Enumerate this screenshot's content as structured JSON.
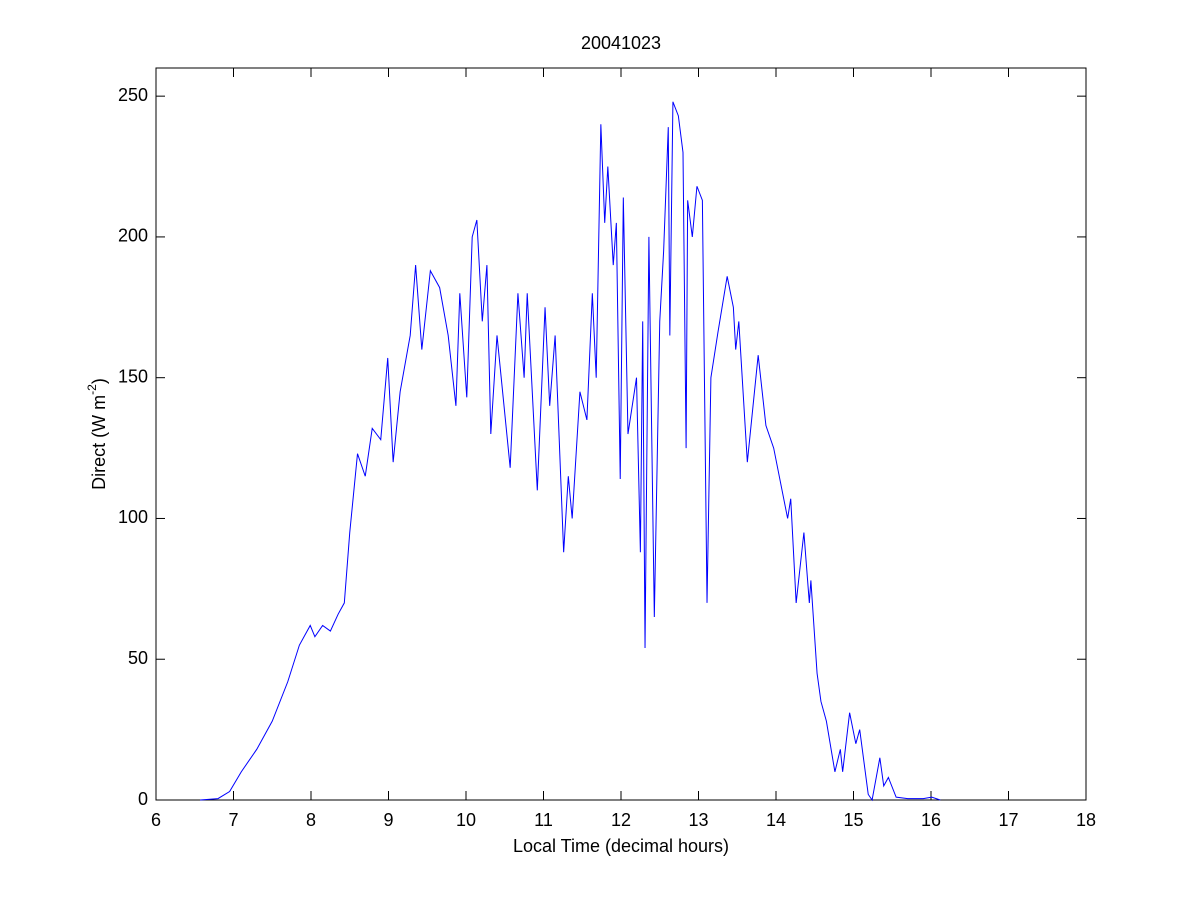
{
  "chart_data": {
    "type": "line",
    "title": "20041023",
    "xlabel": "Local Time (decimal hours)",
    "ylabel": {
      "text": "Direct (W m",
      "sup": "-2",
      "end": ")"
    },
    "xlim": [
      6,
      18
    ],
    "xticks": [
      6,
      7,
      8,
      9,
      10,
      11,
      12,
      13,
      14,
      15,
      16,
      17,
      18
    ],
    "ylim": [
      0,
      260
    ],
    "yticks": [
      0,
      50,
      100,
      150,
      200,
      250
    ],
    "grid": false,
    "x": [
      6.57,
      6.8,
      6.95,
      7.1,
      7.3,
      7.5,
      7.7,
      7.85,
      7.99,
      8.05,
      8.15,
      8.25,
      8.35,
      8.43,
      8.5,
      8.6,
      8.7,
      8.79,
      8.9,
      8.99,
      9.06,
      9.15,
      9.28,
      9.35,
      9.43,
      9.54,
      9.66,
      9.77,
      9.87,
      9.92,
      10.01,
      10.08,
      10.14,
      10.21,
      10.27,
      10.32,
      10.4,
      10.57,
      10.67,
      10.75,
      10.79,
      10.92,
      11.02,
      11.08,
      11.15,
      11.26,
      11.32,
      11.37,
      11.47,
      11.56,
      11.63,
      11.68,
      11.74,
      11.79,
      11.83,
      11.9,
      11.94,
      11.99,
      12.03,
      12.09,
      12.2,
      12.25,
      12.28,
      12.31,
      12.36,
      12.43,
      12.5,
      12.55,
      12.61,
      12.63,
      12.67,
      12.74,
      12.8,
      12.84,
      12.86,
      12.92,
      12.98,
      13.05,
      13.11,
      13.16,
      13.25,
      13.37,
      13.45,
      13.48,
      13.52,
      13.63,
      13.77,
      13.87,
      13.97,
      14.15,
      14.19,
      14.26,
      14.36,
      14.43,
      14.45,
      14.53,
      14.58,
      14.65,
      14.76,
      14.83,
      14.86,
      14.95,
      15.03,
      15.08,
      15.19,
      15.24,
      15.34,
      15.39,
      15.45,
      15.55,
      15.7,
      15.9,
      16.01,
      16.12
    ],
    "series": [
      {
        "name": "Direct",
        "color": "#0000ff",
        "values": [
          0,
          0.5,
          3,
          10,
          18,
          28,
          42,
          55,
          62,
          58,
          62,
          60,
          66,
          70,
          95,
          123,
          115,
          132,
          128,
          157,
          120,
          145,
          165,
          190,
          160,
          188,
          182,
          165,
          140,
          180,
          143,
          200,
          206,
          170,
          190,
          130,
          165,
          118,
          180,
          150,
          180,
          110,
          175,
          140,
          165,
          88,
          115,
          100,
          145,
          135,
          180,
          150,
          240,
          205,
          225,
          190,
          205,
          114,
          214,
          130,
          150,
          88,
          170,
          54,
          200,
          65,
          170,
          195,
          239,
          165,
          248,
          243,
          230,
          125,
          213,
          200,
          218,
          213,
          70,
          150,
          166,
          186,
          175,
          160,
          170,
          120,
          158,
          133,
          125,
          100,
          107,
          70,
          95,
          70,
          78,
          45,
          35,
          28,
          10,
          18,
          10,
          31,
          20,
          25,
          2,
          0,
          15,
          5,
          8,
          1,
          0.5,
          0.5,
          1,
          0
        ]
      }
    ]
  }
}
